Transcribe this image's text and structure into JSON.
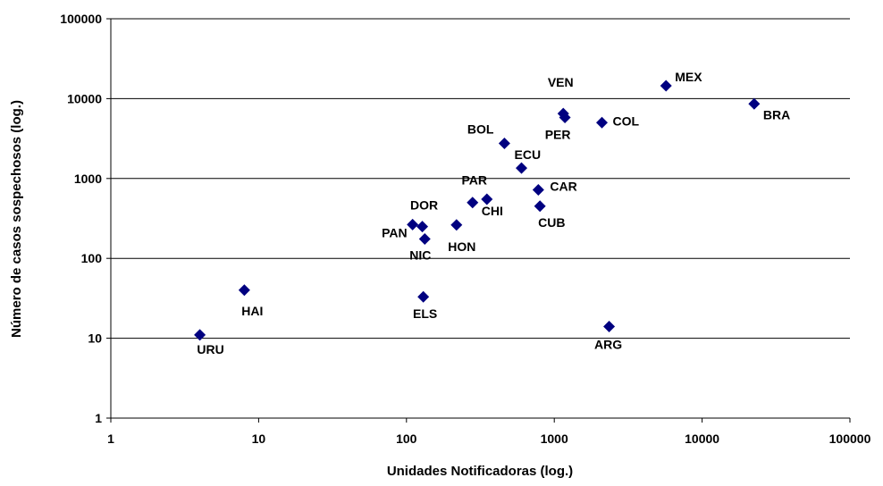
{
  "chart_data": {
    "type": "scatter",
    "title": "",
    "xlabel": "Unidades Notificadoras (log.)",
    "ylabel": "Número de casos sospechosos (log.)",
    "x_scale": "log",
    "y_scale": "log",
    "xlim": [
      1,
      100000
    ],
    "ylim": [
      1,
      100000
    ],
    "x_ticks": [
      "1",
      "10",
      "100",
      "1000",
      "10000",
      "100000"
    ],
    "y_ticks": [
      "1",
      "10",
      "100",
      "1000",
      "10000",
      "100000"
    ],
    "grid": "horizontal",
    "legend": "none",
    "marker": "diamond",
    "marker_color": "#000080",
    "points": [
      {
        "label": "URU",
        "x": 4,
        "y": 11
      },
      {
        "label": "HAI",
        "x": 8,
        "y": 40
      },
      {
        "label": "PAN",
        "x": 110,
        "y": 265
      },
      {
        "label": "DOR",
        "x": 128,
        "y": 250
      },
      {
        "label": "NIC",
        "x": 133,
        "y": 175
      },
      {
        "label": "ELS",
        "x": 130,
        "y": 33
      },
      {
        "label": "HON",
        "x": 218,
        "y": 262
      },
      {
        "label": "PAR",
        "x": 280,
        "y": 500
      },
      {
        "label": "CHI",
        "x": 350,
        "y": 550
      },
      {
        "label": "BOL",
        "x": 460,
        "y": 2750
      },
      {
        "label": "ECU",
        "x": 600,
        "y": 1350
      },
      {
        "label": "CAR",
        "x": 780,
        "y": 720
      },
      {
        "label": "CUB",
        "x": 800,
        "y": 450
      },
      {
        "label": "VEN",
        "x": 1150,
        "y": 6500
      },
      {
        "label": "PER",
        "x": 1180,
        "y": 5800
      },
      {
        "label": "COL",
        "x": 2100,
        "y": 5000
      },
      {
        "label": "ARG",
        "x": 2350,
        "y": 14
      },
      {
        "label": "MEX",
        "x": 5700,
        "y": 14500
      },
      {
        "label": "BRA",
        "x": 22500,
        "y": 8600
      }
    ]
  }
}
